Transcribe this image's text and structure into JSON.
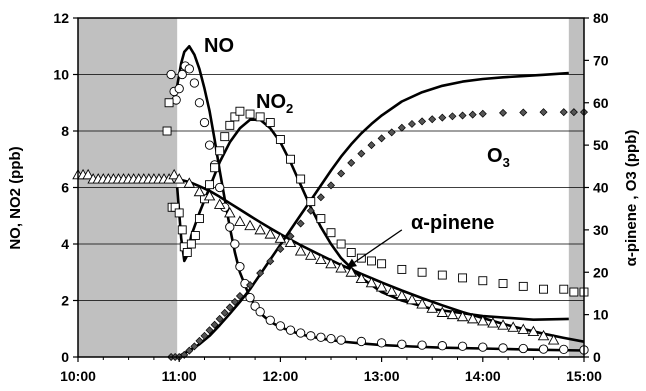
{
  "chart_data": {
    "type": "scatter",
    "title": "",
    "xlabel": "",
    "ylabel_left": "NO, NO2 (ppb)",
    "ylabel_right": "α-pinene , O3 (ppb)",
    "x_ticks": [
      "10:00",
      "11:00",
      "12:00",
      "13:00",
      "14:00",
      "15:00"
    ],
    "x_range_hours": [
      10,
      15
    ],
    "ylim_left": [
      0,
      12
    ],
    "yticks_left": [
      "0",
      "2",
      "4",
      "6",
      "8",
      "10",
      "12"
    ],
    "ylim_right": [
      0,
      80
    ],
    "yticks_right": [
      "0",
      "10",
      "20",
      "30",
      "40",
      "50",
      "60",
      "70",
      "80"
    ],
    "grid": "horizontal",
    "shaded_periods": [
      {
        "start_hour": 10.0,
        "end_hour": 10.98
      },
      {
        "start_hour": 14.85,
        "end_hour": 15.0
      }
    ],
    "annotations": {
      "no": "NO",
      "no2_base": "NO",
      "no2_sub": "2",
      "o3_base": "O",
      "o3_sub": "3",
      "pinene": "α-pinene"
    },
    "series": [
      {
        "label": "NO",
        "marker": "circle",
        "axis": "left",
        "x": [
          10.92,
          10.95,
          10.97,
          11.0,
          11.03,
          11.06,
          11.1,
          11.15,
          11.2,
          11.25,
          11.3,
          11.35,
          11.4,
          11.45,
          11.5,
          11.55,
          11.6,
          11.65,
          11.7,
          11.75,
          11.8,
          11.9,
          12.0,
          12.1,
          12.2,
          12.3,
          12.4,
          12.5,
          12.6,
          12.8,
          13.0,
          13.2,
          13.4,
          13.6,
          13.8,
          14.0,
          14.2,
          14.4,
          14.6,
          14.8,
          15.0
        ],
        "y": [
          10.0,
          9.4,
          9.1,
          9.5,
          10.0,
          10.3,
          10.2,
          9.7,
          9.0,
          8.3,
          7.5,
          6.8,
          6.0,
          5.3,
          4.6,
          4.0,
          3.2,
          2.6,
          2.1,
          1.8,
          1.6,
          1.3,
          1.1,
          0.95,
          0.85,
          0.75,
          0.7,
          0.65,
          0.6,
          0.55,
          0.5,
          0.45,
          0.42,
          0.4,
          0.38,
          0.35,
          0.32,
          0.3,
          0.28,
          0.27,
          0.25
        ]
      },
      {
        "label": "NO",
        "axis": "left",
        "type": "line",
        "x": [
          10.98,
          11.02,
          11.05,
          11.1,
          11.15,
          11.2,
          11.25,
          11.3,
          11.35,
          11.4,
          11.45,
          11.5,
          11.55,
          11.6,
          11.7,
          11.8,
          11.9,
          12.0,
          12.2,
          12.4,
          12.6,
          12.8,
          13.0,
          13.3,
          13.6,
          14.0,
          14.5,
          15.0
        ],
        "y": [
          9.6,
          10.4,
          10.8,
          11.0,
          10.7,
          10.2,
          9.5,
          8.7,
          7.7,
          6.6,
          5.6,
          4.6,
          3.7,
          3.0,
          2.1,
          1.55,
          1.25,
          1.05,
          0.8,
          0.65,
          0.55,
          0.48,
          0.42,
          0.37,
          0.33,
          0.3,
          0.26,
          0.23
        ]
      },
      {
        "label": "NO2",
        "marker": "square",
        "axis": "left",
        "x": [
          10.88,
          10.9,
          10.93,
          10.96,
          11.0,
          11.03,
          11.05,
          11.08,
          11.12,
          11.16,
          11.2,
          11.25,
          11.3,
          11.35,
          11.4,
          11.45,
          11.5,
          11.55,
          11.6,
          11.7,
          11.8,
          11.9,
          12.0,
          12.1,
          12.2,
          12.3,
          12.4,
          12.5,
          12.6,
          12.7,
          12.8,
          12.9,
          13.0,
          13.2,
          13.4,
          13.6,
          13.8,
          14.0,
          14.2,
          14.4,
          14.6,
          14.8,
          14.9,
          15.0
        ],
        "y": [
          8.0,
          9.0,
          5.3,
          5.3,
          5.1,
          4.5,
          3.9,
          3.7,
          4.0,
          4.3,
          4.9,
          5.6,
          6.1,
          6.7,
          7.3,
          7.8,
          8.2,
          8.5,
          8.7,
          8.6,
          8.5,
          8.3,
          7.7,
          7.0,
          6.3,
          5.5,
          4.9,
          4.4,
          4.0,
          3.7,
          3.5,
          3.4,
          3.3,
          3.1,
          3.0,
          2.9,
          2.8,
          2.7,
          2.6,
          2.5,
          2.4,
          2.4,
          2.3,
          2.3
        ]
      },
      {
        "label": "NO2",
        "axis": "left",
        "type": "line",
        "x": [
          10.98,
          11.02,
          11.05,
          11.08,
          11.12,
          11.2,
          11.3,
          11.4,
          11.5,
          11.6,
          11.7,
          11.8,
          11.9,
          12.0,
          12.1,
          12.2,
          12.3,
          12.4,
          12.5,
          12.6,
          12.8,
          13.0,
          13.2,
          13.5,
          14.0,
          14.5,
          14.85
        ],
        "y": [
          6.0,
          4.2,
          3.4,
          3.6,
          4.3,
          5.1,
          6.0,
          6.9,
          7.6,
          8.1,
          8.4,
          8.4,
          8.1,
          7.6,
          6.9,
          6.1,
          5.3,
          4.6,
          4.0,
          3.5,
          2.8,
          2.3,
          2.0,
          1.7,
          1.45,
          1.32,
          1.35
        ]
      },
      {
        "label": "α-pinene",
        "marker": "triangle",
        "axis": "right",
        "x": [
          10.0,
          10.05,
          10.1,
          10.15,
          10.2,
          10.25,
          10.3,
          10.35,
          10.4,
          10.45,
          10.5,
          10.55,
          10.6,
          10.65,
          10.7,
          10.75,
          10.8,
          10.85,
          10.9,
          10.95,
          11.0,
          11.1,
          11.2,
          11.3,
          11.4,
          11.5,
          11.6,
          11.7,
          11.8,
          11.9,
          12.0,
          12.1,
          12.2,
          12.3,
          12.4,
          12.5,
          12.6,
          12.7,
          12.8,
          12.9,
          13.0,
          13.1,
          13.2,
          13.3,
          13.4,
          13.5,
          13.6,
          13.7,
          13.8,
          13.9,
          14.0,
          14.1,
          14.2,
          14.3,
          14.4,
          14.5,
          14.6,
          14.7
        ],
        "y": [
          43,
          43,
          43,
          42,
          42,
          42,
          42,
          42,
          42,
          42,
          42,
          42,
          42,
          42,
          42,
          42,
          42,
          42,
          42,
          43,
          42,
          41,
          39,
          38,
          36,
          34,
          32,
          31,
          30,
          29,
          28,
          27,
          25,
          24,
          23,
          22,
          21,
          20,
          18.5,
          17.5,
          16.5,
          15.5,
          14.5,
          13.5,
          12.5,
          11.5,
          10.5,
          10,
          9.5,
          9,
          8.5,
          8,
          7.5,
          7,
          6.5,
          6,
          5,
          4
        ]
      },
      {
        "label": "α-pinene",
        "axis": "right",
        "type": "line",
        "x": [
          10.98,
          11.1,
          11.2,
          11.3,
          11.4,
          11.5,
          11.6,
          11.7,
          11.8,
          11.9,
          12.0,
          12.2,
          12.4,
          12.6,
          12.8,
          13.0,
          13.2,
          13.4,
          13.6,
          13.8,
          14.0,
          14.2,
          14.4,
          14.6,
          14.8,
          15.0
        ],
        "y": [
          42,
          41.3,
          40.3,
          39.2,
          37.8,
          36.3,
          34.8,
          33.3,
          31.8,
          30.4,
          29,
          26.4,
          24,
          21.7,
          19.6,
          17.6,
          15.7,
          13.9,
          12.2,
          10.6,
          9.2,
          7.8,
          6.6,
          5.5,
          4.5,
          3.6
        ]
      },
      {
        "label": "O3",
        "marker": "diamond",
        "axis": "right",
        "x": [
          10.92,
          10.96,
          11.0,
          11.05,
          11.1,
          11.15,
          11.2,
          11.25,
          11.3,
          11.35,
          11.4,
          11.45,
          11.5,
          11.55,
          11.6,
          11.7,
          11.8,
          11.9,
          12.0,
          12.1,
          12.2,
          12.3,
          12.4,
          12.5,
          12.6,
          12.7,
          12.8,
          12.9,
          13.0,
          13.1,
          13.2,
          13.3,
          13.4,
          13.5,
          13.6,
          13.7,
          13.8,
          13.9,
          14.0,
          14.2,
          14.4,
          14.6,
          14.8,
          14.9,
          15.0
        ],
        "y": [
          0,
          0,
          0,
          0.5,
          1.5,
          2.5,
          3.8,
          5.0,
          6.3,
          7.6,
          9.0,
          10.4,
          11.7,
          13.0,
          14.4,
          17.0,
          19.8,
          22.6,
          25.5,
          28.5,
          31.5,
          34.5,
          37.7,
          40.5,
          43.3,
          45.8,
          48,
          50,
          51.6,
          53,
          54.1,
          55,
          55.6,
          56.1,
          56.5,
          56.8,
          57,
          57.2,
          57.4,
          57.6,
          57.7,
          57.8,
          57.8,
          57.8,
          57.8
        ]
      },
      {
        "label": "O3",
        "axis": "right",
        "type": "line",
        "x": [
          10.98,
          11.1,
          11.2,
          11.3,
          11.4,
          11.5,
          11.6,
          11.7,
          11.8,
          11.9,
          12.0,
          12.1,
          12.2,
          12.3,
          12.4,
          12.5,
          12.6,
          12.7,
          12.8,
          12.9,
          13.0,
          13.2,
          13.4,
          13.6,
          13.8,
          14.0,
          14.2,
          14.4,
          14.6,
          14.85
        ],
        "y": [
          0,
          1.5,
          3,
          5,
          7.5,
          10.2,
          13,
          16,
          19.5,
          23,
          26.5,
          30,
          33.5,
          37,
          40.5,
          44,
          47.3,
          50.2,
          52.8,
          55,
          57,
          60.3,
          62.5,
          64,
          65,
          65.6,
          66,
          66.3,
          66.6,
          67
        ]
      }
    ],
    "arrow": {
      "from": {
        "x": 13.2,
        "y_right": 30
      },
      "to": {
        "x": 12.65,
        "y_right": 21
      }
    }
  }
}
